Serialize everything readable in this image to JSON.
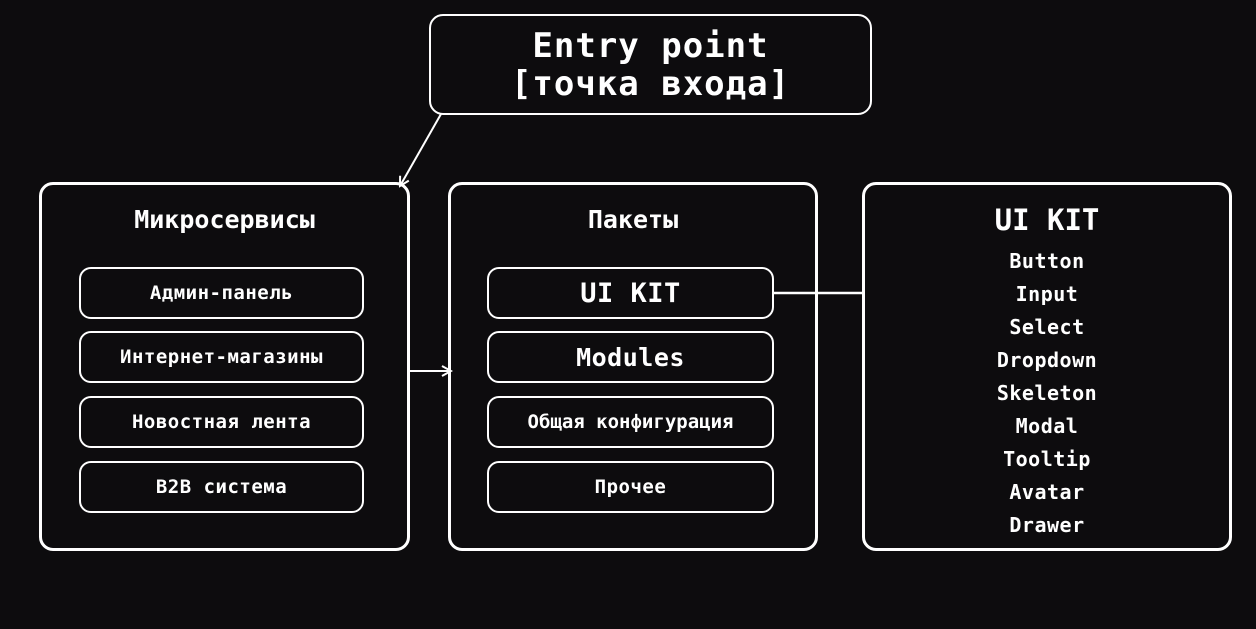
{
  "entry_point": {
    "line1": "Entry point",
    "line2": "[точка входа]"
  },
  "microservices": {
    "title": "Микросервисы",
    "items": [
      "Админ-панель",
      "Интернет-магазины",
      "Новостная лента",
      "B2B система"
    ]
  },
  "packages": {
    "title": "Пакеты",
    "items": [
      "UI KIT",
      "Modules",
      "Общая конфигурация",
      "Прочее"
    ]
  },
  "ui_kit": {
    "title": "UI KIT",
    "items": [
      "Button",
      "Input",
      "Select",
      "Dropdown",
      "Skeleton",
      "Modal",
      "Tooltip",
      "Avatar",
      "Drawer"
    ]
  },
  "colors": {
    "background": "#0d0c0e",
    "stroke": "#ffffff",
    "text": "#ffffff"
  }
}
